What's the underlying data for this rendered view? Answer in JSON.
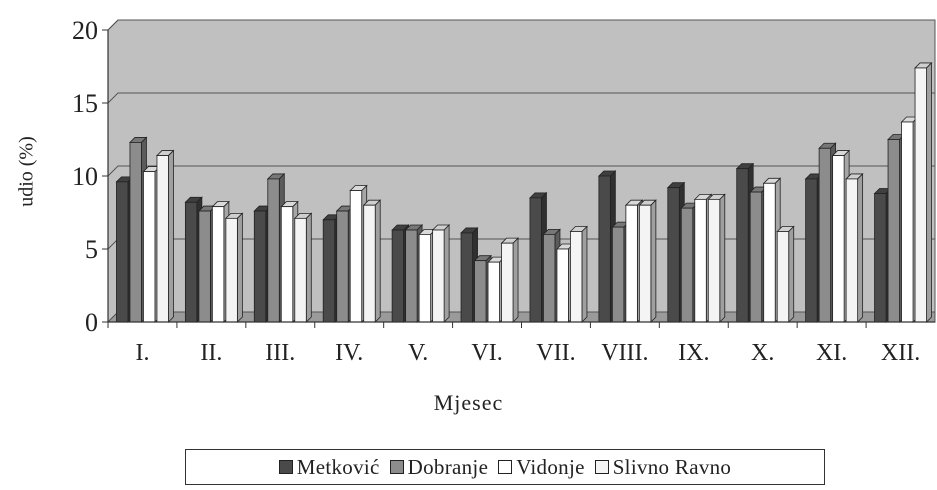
{
  "chart_data": {
    "type": "bar",
    "title": "",
    "xlabel": "Mjesec",
    "ylabel": "udio (%)",
    "ylim": [
      0,
      20
    ],
    "yticks": [
      "0",
      "5",
      "10",
      "15",
      "20"
    ],
    "grid": true,
    "legend_position": "bottom",
    "categories": [
      "I.",
      "II.",
      "III.",
      "IV.",
      "V.",
      "VI.",
      "VII.",
      "VIII.",
      "IX.",
      "X.",
      "XI.",
      "XII."
    ],
    "series": [
      {
        "name": "Metković",
        "color": "#4a4a4a",
        "values": [
          9.6,
          8.2,
          7.6,
          7.0,
          6.3,
          6.1,
          8.5,
          10.0,
          9.2,
          10.5,
          9.8,
          8.8
        ]
      },
      {
        "name": "Dobranje",
        "color": "#8c8c8c",
        "values": [
          12.3,
          7.6,
          9.8,
          7.6,
          6.3,
          4.2,
          6.0,
          6.5,
          7.8,
          8.9,
          11.9,
          12.5
        ]
      },
      {
        "name": "Vidonje",
        "color": "#ffffff",
        "values": [
          10.3,
          7.9,
          7.9,
          9.0,
          6.0,
          4.1,
          5.0,
          8.0,
          8.4,
          9.5,
          11.4,
          13.7
        ]
      },
      {
        "name": "Slivno Ravno",
        "color": "#f4f4f4",
        "values": [
          11.4,
          7.1,
          7.1,
          8.0,
          6.3,
          5.4,
          6.2,
          8.0,
          8.4,
          6.2,
          9.8,
          17.4
        ]
      }
    ]
  }
}
